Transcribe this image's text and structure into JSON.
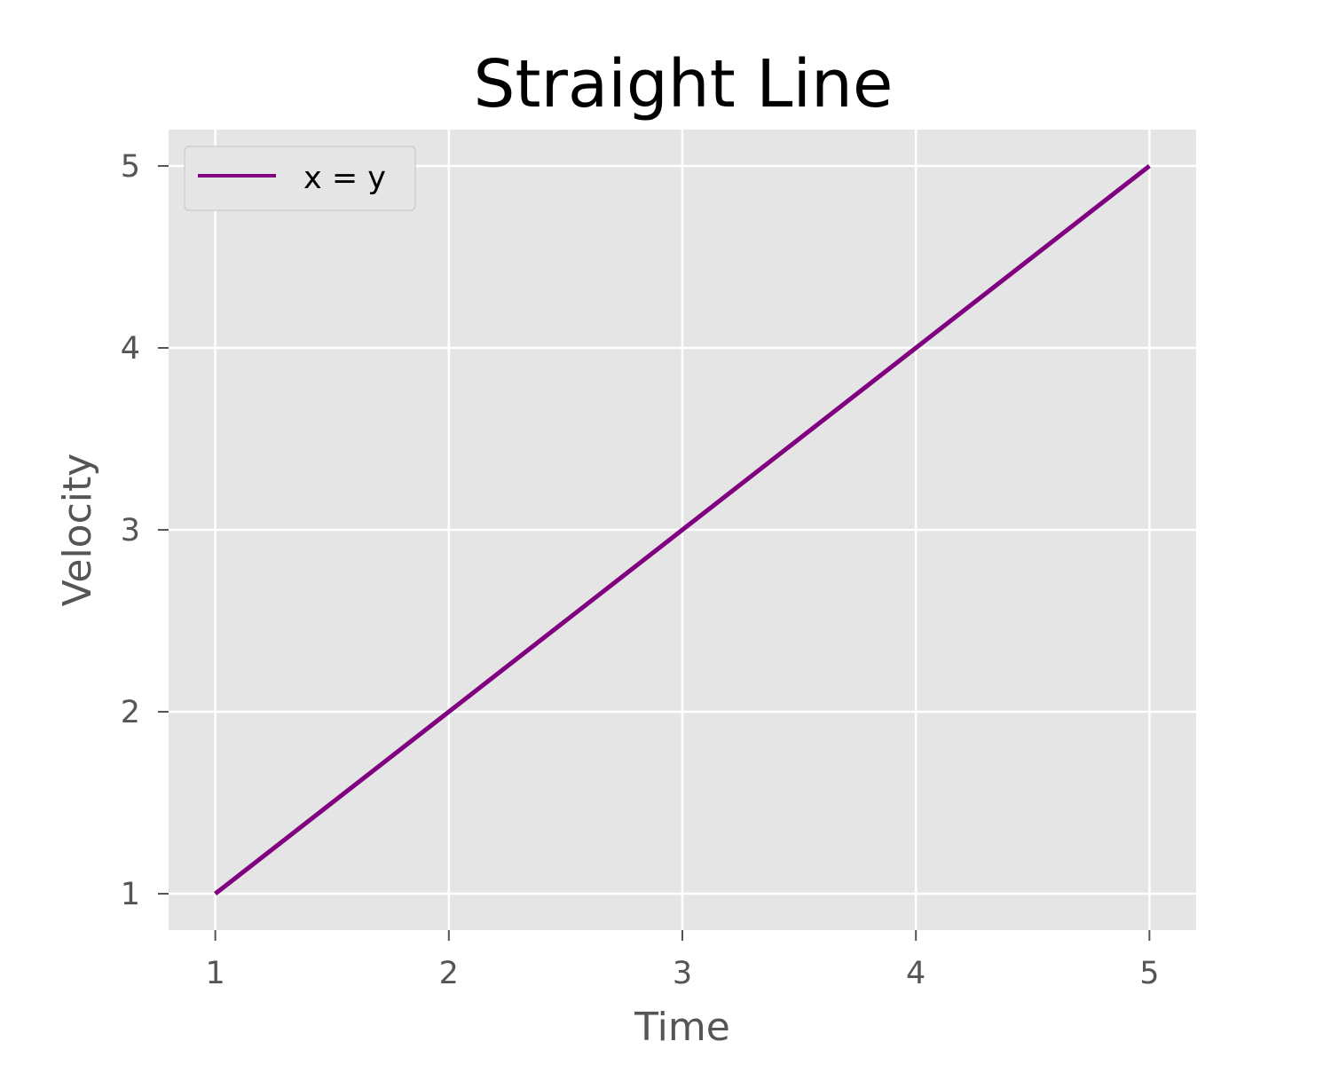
{
  "chart_data": {
    "type": "line",
    "title": "Straight Line",
    "xlabel": "Time",
    "ylabel": "Velocity",
    "x": [
      1,
      2,
      3,
      4,
      5
    ],
    "series": [
      {
        "name": "x = y",
        "values": [
          1,
          2,
          3,
          4,
          5
        ],
        "color": "#800080"
      }
    ],
    "xlim": [
      0.8,
      5.2
    ],
    "ylim": [
      0.8,
      5.2
    ],
    "xticks": [
      1,
      2,
      3,
      4,
      5
    ],
    "yticks": [
      1,
      2,
      3,
      4,
      5
    ],
    "grid": true,
    "legend_position": "top-left",
    "background_color": "#e5e5e5",
    "grid_color": "#ffffff"
  }
}
